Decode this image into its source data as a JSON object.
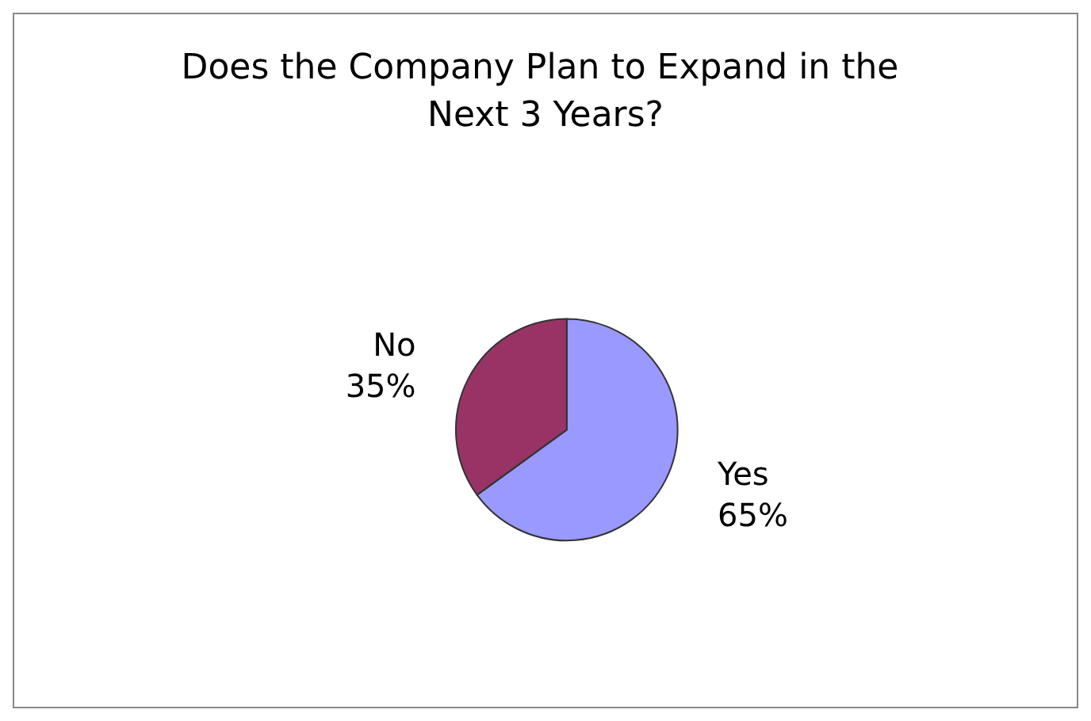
{
  "chart_data": {
    "type": "pie",
    "title": "Does the Company Plan to Expand in the Next 3 Years?",
    "categories": [
      "Yes",
      "No"
    ],
    "values": [
      65,
      35
    ],
    "colors": [
      "#9999ff",
      "#993366"
    ],
    "value_labels": [
      "65%",
      "35%"
    ],
    "legend": false
  }
}
